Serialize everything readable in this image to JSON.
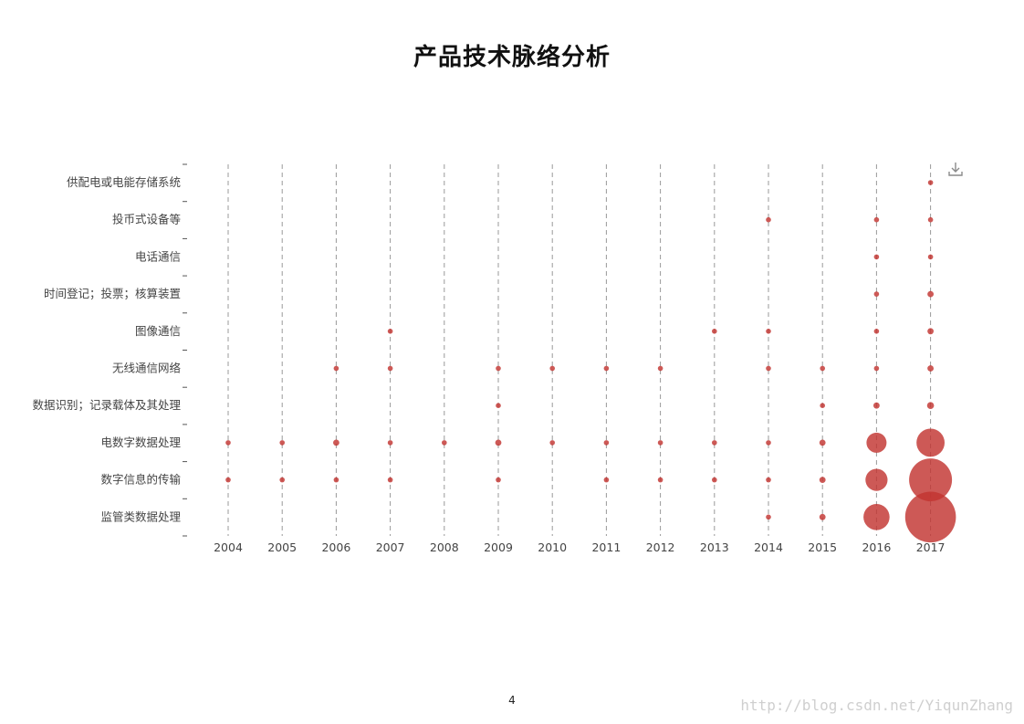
{
  "page": {
    "page_number": "4",
    "watermark": "http://blog.csdn.net/YiqunZhang"
  },
  "toolbox": {
    "download_icon": "download-icon"
  },
  "chart_data": {
    "type": "scatter",
    "title": "产品技术脉络分析",
    "x_categories": [
      "2004",
      "2005",
      "2006",
      "2007",
      "2008",
      "2009",
      "2010",
      "2011",
      "2012",
      "2013",
      "2014",
      "2015",
      "2016",
      "2017"
    ],
    "y_categories": [
      "供配电或电能存储系统",
      "投币式设备等",
      "电话通信",
      "时间登记；投票；核算装置",
      "图像通信",
      "无线通信网络",
      "数据识别；记录载体及其处理",
      "电数字数据处理",
      "数字信息的传输",
      "监管类数据处理"
    ],
    "grid": "vertical-dashed",
    "point_color": "#c23531",
    "points": [
      {
        "x": "2017",
        "y": "供配电或电能存储系统",
        "value": 1
      },
      {
        "x": "2014",
        "y": "投币式设备等",
        "value": 1
      },
      {
        "x": "2016",
        "y": "投币式设备等",
        "value": 1
      },
      {
        "x": "2017",
        "y": "投币式设备等",
        "value": 1
      },
      {
        "x": "2016",
        "y": "电话通信",
        "value": 1
      },
      {
        "x": "2017",
        "y": "电话通信",
        "value": 1
      },
      {
        "x": "2016",
        "y": "时间登记；投票；核算装置",
        "value": 1
      },
      {
        "x": "2017",
        "y": "时间登记；投票；核算装置",
        "value": 2
      },
      {
        "x": "2007",
        "y": "图像通信",
        "value": 1
      },
      {
        "x": "2013",
        "y": "图像通信",
        "value": 1
      },
      {
        "x": "2014",
        "y": "图像通信",
        "value": 1
      },
      {
        "x": "2016",
        "y": "图像通信",
        "value": 1
      },
      {
        "x": "2017",
        "y": "图像通信",
        "value": 2
      },
      {
        "x": "2006",
        "y": "无线通信网络",
        "value": 1
      },
      {
        "x": "2007",
        "y": "无线通信网络",
        "value": 1
      },
      {
        "x": "2009",
        "y": "无线通信网络",
        "value": 1
      },
      {
        "x": "2010",
        "y": "无线通信网络",
        "value": 1
      },
      {
        "x": "2011",
        "y": "无线通信网络",
        "value": 1
      },
      {
        "x": "2012",
        "y": "无线通信网络",
        "value": 1
      },
      {
        "x": "2014",
        "y": "无线通信网络",
        "value": 1
      },
      {
        "x": "2015",
        "y": "无线通信网络",
        "value": 1
      },
      {
        "x": "2016",
        "y": "无线通信网络",
        "value": 1
      },
      {
        "x": "2017",
        "y": "无线通信网络",
        "value": 2
      },
      {
        "x": "2009",
        "y": "数据识别；记录载体及其处理",
        "value": 1
      },
      {
        "x": "2015",
        "y": "数据识别；记录载体及其处理",
        "value": 1
      },
      {
        "x": "2016",
        "y": "数据识别；记录载体及其处理",
        "value": 2
      },
      {
        "x": "2017",
        "y": "数据识别；记录载体及其处理",
        "value": 3
      },
      {
        "x": "2004",
        "y": "电数字数据处理",
        "value": 1
      },
      {
        "x": "2005",
        "y": "电数字数据处理",
        "value": 1
      },
      {
        "x": "2006",
        "y": "电数字数据处理",
        "value": 2
      },
      {
        "x": "2007",
        "y": "电数字数据处理",
        "value": 1
      },
      {
        "x": "2008",
        "y": "电数字数据处理",
        "value": 1
      },
      {
        "x": "2009",
        "y": "电数字数据处理",
        "value": 2
      },
      {
        "x": "2010",
        "y": "电数字数据处理",
        "value": 1
      },
      {
        "x": "2011",
        "y": "电数字数据处理",
        "value": 1
      },
      {
        "x": "2012",
        "y": "电数字数据处理",
        "value": 1
      },
      {
        "x": "2013",
        "y": "电数字数据处理",
        "value": 1
      },
      {
        "x": "2014",
        "y": "电数字数据处理",
        "value": 1
      },
      {
        "x": "2015",
        "y": "电数字数据处理",
        "value": 2
      },
      {
        "x": "2016",
        "y": "电数字数据处理",
        "value": 45
      },
      {
        "x": "2017",
        "y": "电数字数据处理",
        "value": 95
      },
      {
        "x": "2004",
        "y": "数字信息的传输",
        "value": 1
      },
      {
        "x": "2005",
        "y": "数字信息的传输",
        "value": 1
      },
      {
        "x": "2006",
        "y": "数字信息的传输",
        "value": 1
      },
      {
        "x": "2007",
        "y": "数字信息的传输",
        "value": 1
      },
      {
        "x": "2009",
        "y": "数字信息的传输",
        "value": 1
      },
      {
        "x": "2011",
        "y": "数字信息的传输",
        "value": 1
      },
      {
        "x": "2012",
        "y": "数字信息的传输",
        "value": 1
      },
      {
        "x": "2013",
        "y": "数字信息的传输",
        "value": 1
      },
      {
        "x": "2014",
        "y": "数字信息的传输",
        "value": 1
      },
      {
        "x": "2015",
        "y": "数字信息的传输",
        "value": 2
      },
      {
        "x": "2016",
        "y": "数字信息的传输",
        "value": 55
      },
      {
        "x": "2017",
        "y": "数字信息的传输",
        "value": 235
      },
      {
        "x": "2014",
        "y": "监管类数据处理",
        "value": 1
      },
      {
        "x": "2015",
        "y": "监管类数据处理",
        "value": 2
      },
      {
        "x": "2016",
        "y": "监管类数据处理",
        "value": 80
      },
      {
        "x": "2017",
        "y": "监管类数据处理",
        "value": 335
      }
    ]
  }
}
